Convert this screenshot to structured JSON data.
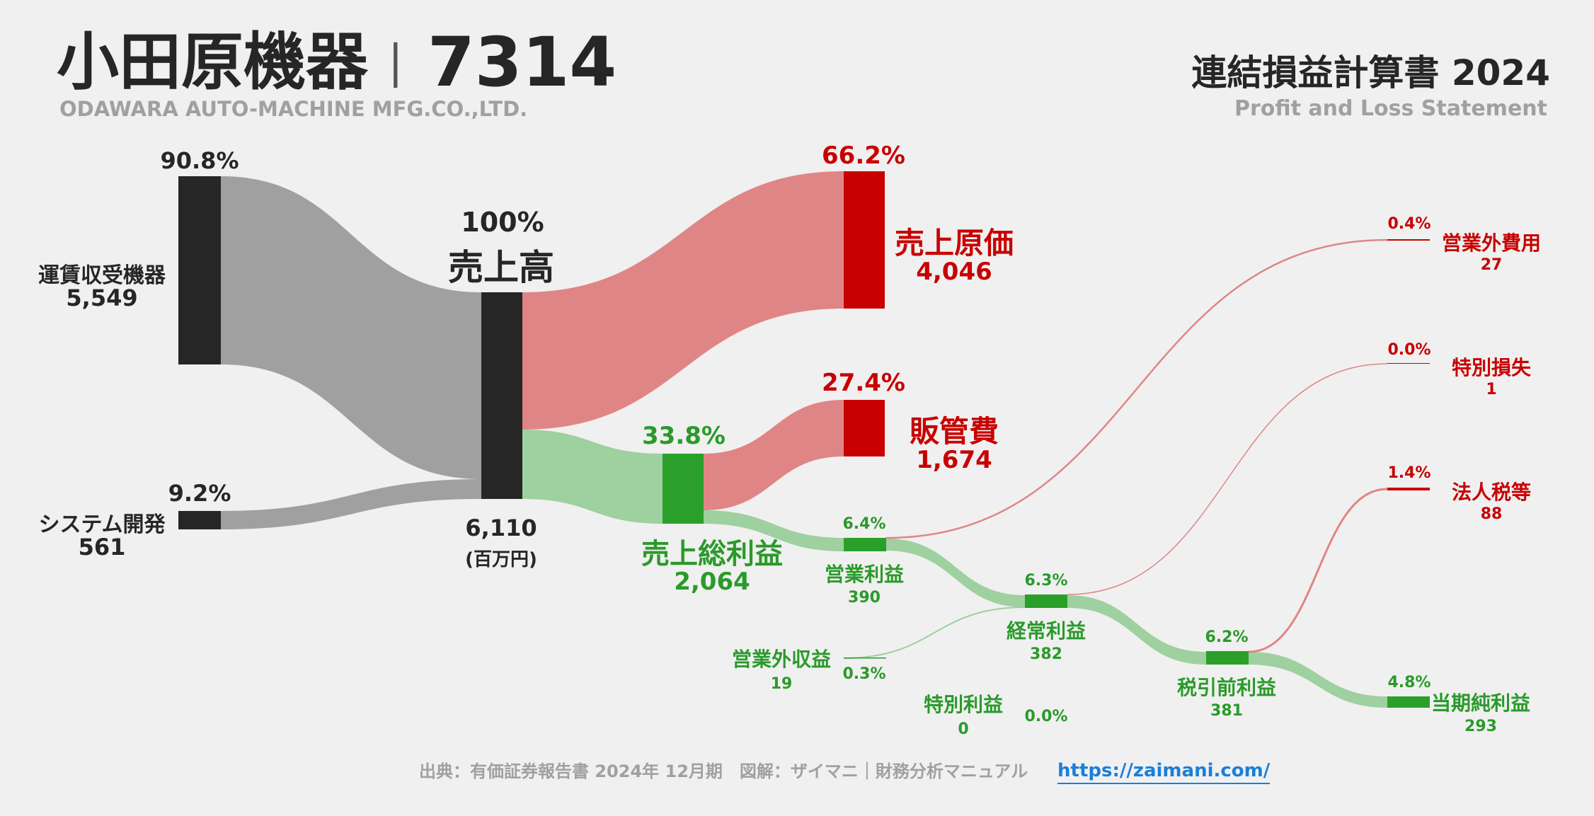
{
  "header": {
    "company": "小田原機器",
    "separator": "|",
    "code": "7314",
    "company_en": "ODAWARA AUTO-MACHINE MFG.CO.,LTD.",
    "statement": "連結損益計算書 2024",
    "statement_en": "Profit and Loss Statement"
  },
  "footer": {
    "source": "出典：有価証券報告書 2024年 12月期　図解：ザイマニ｜財務分析マニュアル",
    "url": "https://zaimani.com/"
  },
  "colors": {
    "dark_node": "#262626",
    "grey_flow": "#a0a0a0",
    "red_node": "#c80000",
    "red_flow": "#e08585",
    "green_node": "#2aa02a",
    "green_flow": "#9fd09f",
    "link": "#1a7fd8"
  },
  "chart_data": {
    "type": "sankey",
    "unit": "(百万円)",
    "nodes": [
      {
        "id": "unchin",
        "name": "運賃収受機器",
        "value": "5,549",
        "pct": "90.8%"
      },
      {
        "id": "system",
        "name": "システム開発",
        "value": "561",
        "pct": "9.2%"
      },
      {
        "id": "revenue",
        "name": "売上高",
        "value": "6,110",
        "pct": "100%"
      },
      {
        "id": "cogs",
        "name": "売上原価",
        "value": "4,046",
        "pct": "66.2%"
      },
      {
        "id": "gross",
        "name": "売上総利益",
        "value": "2,064",
        "pct": "33.8%"
      },
      {
        "id": "sga",
        "name": "販管費",
        "value": "1,674",
        "pct": "27.4%"
      },
      {
        "id": "op",
        "name": "営業利益",
        "value": "390",
        "pct": "6.4%"
      },
      {
        "id": "nonop_inc",
        "name": "営業外収益",
        "value": "19",
        "pct": "0.3%"
      },
      {
        "id": "nonop_exp",
        "name": "営業外費用",
        "value": "27",
        "pct": "0.4%"
      },
      {
        "id": "ordinary",
        "name": "経常利益",
        "value": "382",
        "pct": "6.3%"
      },
      {
        "id": "ext_gain",
        "name": "特別利益",
        "value": "0",
        "pct": "0.0%"
      },
      {
        "id": "ext_loss",
        "name": "特別損失",
        "value": "1",
        "pct": "0.0%"
      },
      {
        "id": "pretax",
        "name": "税引前利益",
        "value": "381",
        "pct": "6.2%"
      },
      {
        "id": "tax",
        "name": "法人税等",
        "value": "88",
        "pct": "1.4%"
      },
      {
        "id": "net",
        "name": "当期純利益",
        "value": "293",
        "pct": "4.8%"
      }
    ],
    "links": [
      {
        "source": "unchin",
        "target": "revenue",
        "value": 5549
      },
      {
        "source": "system",
        "target": "revenue",
        "value": 561
      },
      {
        "source": "revenue",
        "target": "cogs",
        "value": 4046
      },
      {
        "source": "revenue",
        "target": "gross",
        "value": 2064
      },
      {
        "source": "gross",
        "target": "sga",
        "value": 1674
      },
      {
        "source": "gross",
        "target": "op",
        "value": 390
      },
      {
        "source": "op",
        "target": "nonop_exp",
        "value": 27
      },
      {
        "source": "op",
        "target": "ordinary",
        "value": 363
      },
      {
        "source": "nonop_inc",
        "target": "ordinary",
        "value": 19
      },
      {
        "source": "ordinary",
        "target": "ext_loss",
        "value": 1
      },
      {
        "source": "ordinary",
        "target": "pretax",
        "value": 381
      },
      {
        "source": "pretax",
        "target": "tax",
        "value": 88
      },
      {
        "source": "pretax",
        "target": "net",
        "value": 293
      }
    ]
  }
}
